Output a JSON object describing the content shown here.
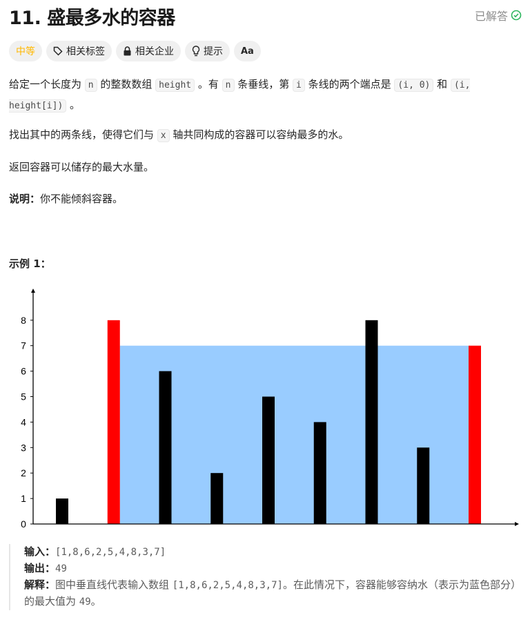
{
  "header": {
    "title": "11. 盛最多水的容器",
    "status": "已解答"
  },
  "tags": [
    {
      "label": "中等",
      "icon": "none"
    },
    {
      "label": "相关标签",
      "icon": "tag-icon"
    },
    {
      "label": "相关企业",
      "icon": "lock-icon"
    },
    {
      "label": "提示",
      "icon": "lightbulb-icon"
    },
    {
      "label": "Aa",
      "icon": "translate-icon"
    }
  ],
  "desc": {
    "p1": [
      "给定一个长度为 ",
      "n",
      " 的整数数组 ",
      "height",
      " 。有 ",
      "n",
      " 条垂线，第 ",
      "i",
      " 条线的两个端点是 ",
      "(i, 0)",
      " 和 ",
      "(i, height[i])",
      " 。"
    ],
    "p2": [
      "找出其中的两条线，使得它们与 ",
      "x",
      " 轴共同构成的容器可以容纳最多的水。"
    ],
    "p3": "返回容器可以储存的最大水量。",
    "note_label": "说明：",
    "note": "你不能倾斜容器。"
  },
  "example": {
    "title": "示例 1：",
    "input_label": "输入：",
    "input": "[1,8,6,2,5,4,8,3,7]",
    "output_label": "输出：",
    "output": "49",
    "explain_label": "解释：",
    "explain_a": "图中垂直线代表输入数组 ",
    "explain_code": "[1,8,6,2,5,4,8,3,7]",
    "explain_b": "。在此情况下，容器能够容纳水（表示为蓝色部分）的最大值为 ",
    "explain_c": "49",
    "explain_d": "。"
  },
  "chart_data": {
    "type": "bar",
    "values": [
      1,
      8,
      6,
      2,
      5,
      4,
      8,
      3,
      7
    ],
    "highlight": [
      1,
      8
    ],
    "water_level": 7,
    "ylim": [
      0,
      8
    ],
    "yticks": [
      "0",
      "1",
      "2",
      "3",
      "4",
      "5",
      "6",
      "7",
      "8"
    ],
    "colors": {
      "bar": "#000000",
      "highlight": "#ff0000",
      "water": "#99ccff"
    }
  }
}
